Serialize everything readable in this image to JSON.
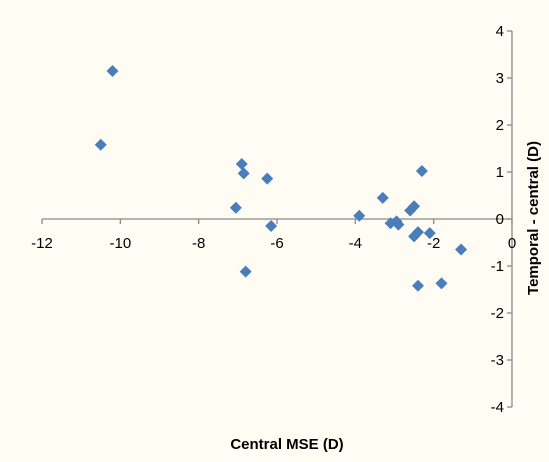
{
  "chart_data": {
    "type": "scatter",
    "title": "",
    "xlabel": "Central MSE (D)",
    "ylabel": "Temporal - central (D)",
    "xlim": [
      -12,
      0
    ],
    "ylim": [
      -4,
      4
    ],
    "x_ticks": [
      "-12",
      "-10",
      "-8",
      "-6",
      "-4",
      "-2",
      "0"
    ],
    "y_ticks": [
      "4",
      "3",
      "2",
      "1",
      "0",
      "-1",
      "-2",
      "-3",
      "-4"
    ],
    "grid": false,
    "legend": "none",
    "marker": "diamond",
    "colors": {
      "marker": "#4a7ebb",
      "axis": "#898989",
      "background": "#fffdf3"
    },
    "points": [
      {
        "x": -10.2,
        "y": 3.15
      },
      {
        "x": -10.5,
        "y": 1.58
      },
      {
        "x": -6.9,
        "y": 1.17
      },
      {
        "x": -6.85,
        "y": 0.97
      },
      {
        "x": -6.25,
        "y": 0.86
      },
      {
        "x": -7.05,
        "y": 0.24
      },
      {
        "x": -6.15,
        "y": -0.15
      },
      {
        "x": -6.8,
        "y": -1.12
      },
      {
        "x": -3.9,
        "y": 0.07
      },
      {
        "x": -3.3,
        "y": 0.45
      },
      {
        "x": -3.1,
        "y": -0.09
      },
      {
        "x": -2.95,
        "y": -0.05
      },
      {
        "x": -2.9,
        "y": -0.12
      },
      {
        "x": -2.6,
        "y": 0.18
      },
      {
        "x": -2.5,
        "y": 0.27
      },
      {
        "x": -2.5,
        "y": -0.37
      },
      {
        "x": -2.4,
        "y": -0.28
      },
      {
        "x": -2.3,
        "y": 1.02
      },
      {
        "x": -2.1,
        "y": -0.3
      },
      {
        "x": -2.4,
        "y": -1.42
      },
      {
        "x": -1.8,
        "y": -1.37
      },
      {
        "x": -1.3,
        "y": -0.65
      }
    ]
  }
}
